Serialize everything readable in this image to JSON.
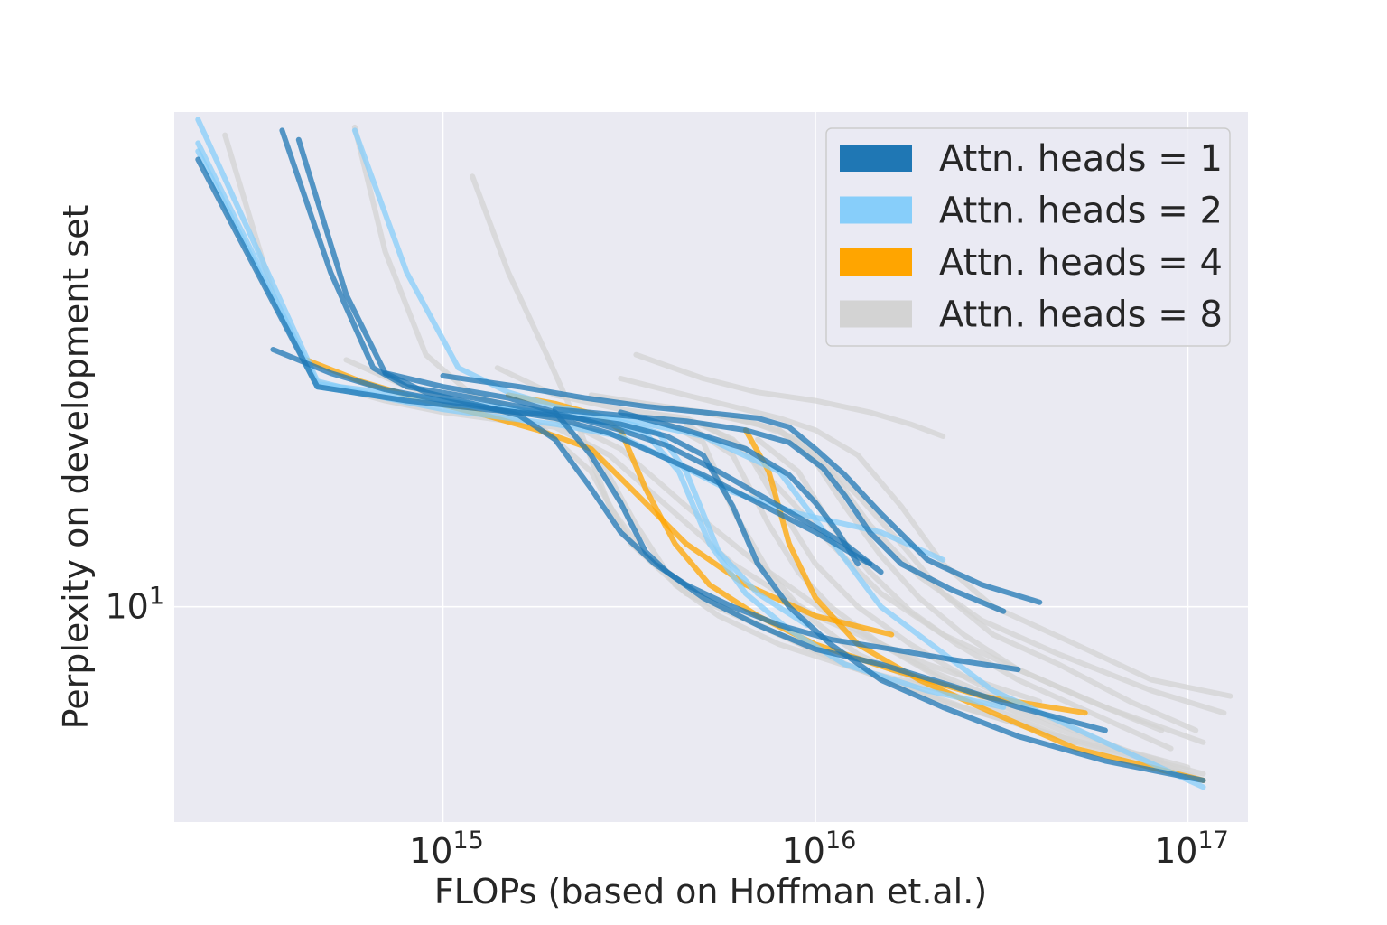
{
  "chart_data": {
    "type": "line",
    "title": "",
    "xlabel": "FLOPs (based on Hoffman et.al.)",
    "ylabel": "Perplexity on development set",
    "xscale": "log",
    "yscale": "log",
    "xlim": [
      190000000000000.0,
      1.45e+17
    ],
    "ylim": [
      6.2,
      30.0
    ],
    "grid": true,
    "legend_position": "upper right",
    "x_ticks": [
      {
        "value": 1000000000000000.0,
        "base": "10",
        "exp": "15"
      },
      {
        "value": 1e+16,
        "base": "10",
        "exp": "16"
      },
      {
        "value": 1e+17,
        "base": "10",
        "exp": "17"
      }
    ],
    "y_ticks": [
      {
        "value": 10,
        "base": "10",
        "exp": "1"
      }
    ],
    "legend": [
      {
        "label": "Attn. heads = 1",
        "color": "#1f77b4"
      },
      {
        "label": "Attn. heads = 2",
        "color": "#87cefa"
      },
      {
        "label": "Attn. heads = 4",
        "color": "#ffa500"
      },
      {
        "label": "Attn. heads = 8",
        "color": "#d3d3d3"
      }
    ],
    "series": [
      {
        "group": 8,
        "x": [
          260000000000000.0,
          350000000000000.0,
          450000000000000.0,
          700000000000000.0,
          1000000000000000.0,
          1500000000000000.0,
          2000000000000000.0,
          2800000000000000.0,
          4000000000000000.0,
          6000000000000000.0,
          1e+16,
          2e+16,
          4e+16
        ],
        "y": [
          28.5,
          20.0,
          16.5,
          15.8,
          15.4,
          15.1,
          14.9,
          14.0,
          12.5,
          11.0,
          9.8,
          8.8,
          8.1
        ]
      },
      {
        "group": 8,
        "x": [
          580000000000000.0,
          700000000000000.0,
          900000000000000.0,
          1200000000000000.0,
          1600000000000000.0,
          2200000000000000.0,
          3000000000000000.0,
          4500000000000000.0,
          7000000000000000.0,
          1.1e+16,
          2e+16,
          4.5e+16,
          1.1e+17
        ],
        "y": [
          29.0,
          22.0,
          17.5,
          16.0,
          15.5,
          15.0,
          14.2,
          12.5,
          11.0,
          9.8,
          8.7,
          7.7,
          6.8
        ]
      },
      {
        "group": 8,
        "x": [
          1200000000000000.0,
          1500000000000000.0,
          1900000000000000.0,
          2300000000000000.0,
          2800000000000000.0,
          3500000000000000.0,
          5000000000000000.0,
          8000000000000000.0,
          1.3e+16,
          2.5e+16,
          5e+16,
          1.1e+17
        ],
        "y": [
          26.0,
          21.0,
          17.5,
          15.0,
          12.5,
          11.2,
          10.2,
          9.4,
          8.7,
          8.0,
          7.4,
          6.8
        ]
      },
      {
        "group": 8,
        "x": [
          550000000000000.0,
          800000000000000.0,
          1200000000000000.0,
          1800000000000000.0,
          2500000000000000.0,
          3200000000000000.0,
          4500000000000000.0,
          7000000000000000.0,
          1.2e+16,
          2.2e+16,
          4.5e+16,
          1.1e+17
        ],
        "y": [
          17.3,
          16.3,
          15.6,
          15.0,
          13.5,
          11.5,
          10.3,
          9.6,
          8.8,
          8.1,
          7.5,
          6.9
        ]
      },
      {
        "group": 8,
        "x": [
          1400000000000000.0,
          2000000000000000.0,
          3000000000000000.0,
          4500000000000000.0,
          6000000000000000.0,
          8000000000000000.0,
          1.1e+16,
          1.5e+16,
          2.2e+16,
          3.5e+16,
          6e+16,
          1.1e+17
        ],
        "y": [
          17.0,
          16.0,
          15.5,
          15.2,
          14.5,
          13.0,
          11.5,
          10.3,
          9.4,
          8.7,
          8.0,
          7.4
        ]
      },
      {
        "group": 8,
        "x": [
          2500000000000000.0,
          3500000000000000.0,
          5000000000000000.0,
          7000000000000000.0,
          9000000000000000.0,
          1.1e+16,
          1.4e+16,
          1.9e+16,
          2.8e+16,
          4.5e+16,
          8e+16,
          1.25e+17
        ],
        "y": [
          16.0,
          15.7,
          15.4,
          15.0,
          14.5,
          13.5,
          12.0,
          10.7,
          9.7,
          9.0,
          8.3,
          7.9
        ]
      },
      {
        "group": 8,
        "x": [
          3000000000000000.0,
          4500000000000000.0,
          6000000000000000.0,
          8000000000000000.0,
          1e+16,
          1.3e+16,
          1.7e+16,
          2.2e+16,
          3e+16,
          5e+16,
          8e+16,
          1.3e+17
        ],
        "y": [
          16.6,
          16.0,
          15.6,
          15.2,
          14.8,
          14.0,
          12.5,
          11.0,
          10.0,
          9.2,
          8.5,
          8.2
        ]
      },
      {
        "group": 8,
        "x": [
          3300000000000000.0,
          5000000000000000.0,
          7000000000000000.0,
          1e+16,
          1.4e+16,
          1.8e+16,
          2.2e+16
        ],
        "y": [
          17.5,
          16.6,
          16.1,
          15.8,
          15.4,
          15.0,
          14.6
        ]
      },
      {
        "group": 8,
        "x": [
          6000000000000000.0,
          8000000000000000.0,
          1e+16,
          1.3e+16,
          1.7e+16,
          2.2e+16,
          3e+16,
          4.5e+16,
          7e+16,
          1.05e+17
        ],
        "y": [
          15.2,
          14.8,
          14.0,
          12.8,
          11.5,
          10.3,
          9.4,
          8.8,
          8.1,
          7.6
        ]
      },
      {
        "group": 8,
        "x": [
          5000000000000000.0,
          6500000000000000.0,
          8000000000000000.0,
          1e+16,
          1.3e+16,
          1.8e+16,
          2.6e+16,
          4e+16,
          6.5e+16,
          1e+17
        ],
        "y": [
          15.0,
          14.2,
          12.5,
          11.0,
          10.0,
          9.2,
          8.5,
          7.9,
          7.3,
          7.0
        ]
      },
      {
        "group": 8,
        "x": [
          4500000000000000.0,
          6000000000000000.0,
          7500000000000000.0,
          9000000000000000.0,
          1.1e+16,
          1.5e+16,
          2.2e+16,
          3.5e+16,
          5.5e+16,
          8.5e+16
        ],
        "y": [
          15.0,
          14.0,
          12.0,
          10.8,
          10.0,
          9.2,
          8.5,
          7.9,
          7.4,
          7.1
        ]
      },
      {
        "group": 8,
        "x": [
          7000000000000000.0,
          9000000000000000.0,
          1.1e+16,
          1.4e+16,
          1.8e+16,
          2.4e+16,
          3.5e+16,
          5.5e+16,
          9e+16
        ],
        "y": [
          14.5,
          13.5,
          12.0,
          10.8,
          9.9,
          9.2,
          8.5,
          7.9,
          7.3
        ]
      },
      {
        "group": 8,
        "x": [
          3800000000000000.0,
          5000000000000000.0,
          6000000000000000.0,
          7500000000000000.0,
          9500000000000000.0,
          1.3e+16,
          2e+16,
          3.2e+16,
          5e+16
        ],
        "y": [
          15.2,
          14.4,
          12.4,
          10.8,
          9.8,
          9.0,
          8.4,
          7.9,
          7.4
        ]
      },
      {
        "group": 8,
        "x": [
          2000000000000000.0,
          2600000000000000.0,
          3300000000000000.0,
          4200000000000000.0,
          5500000000000000.0,
          8000000000000000.0,
          1.3e+16,
          2.2e+16
        ],
        "y": [
          15.2,
          14.0,
          12.0,
          10.5,
          9.8,
          9.2,
          8.7,
          8.3
        ]
      },
      {
        "group": 8,
        "x": [
          8000000000000000.0,
          1e+16,
          1.2e+16,
          1.5e+16,
          1.9e+16,
          2.5e+16,
          3.5e+16,
          5.5e+16,
          8.5e+16
        ],
        "y": [
          14.8,
          13.8,
          12.5,
          11.2,
          10.2,
          9.4,
          8.7,
          8.1,
          7.6
        ]
      },
      {
        "group": 4,
        "x": [
          430000000000000.0,
          600000000000000.0,
          900000000000000.0,
          1300000000000000.0,
          1800000000000000.0,
          2500000000000000.0,
          3200000000000000.0,
          4500000000000000.0,
          6500000000000000.0,
          1e+16,
          1.6e+16
        ],
        "y": [
          17.3,
          16.5,
          15.8,
          15.3,
          14.8,
          14.2,
          13.0,
          11.5,
          10.5,
          9.8,
          9.4
        ]
      },
      {
        "group": 4,
        "x": [
          1500000000000000.0,
          2000000000000000.0,
          2600000000000000.0,
          3000000000000000.0,
          3500000000000000.0,
          4200000000000000.0,
          5200000000000000.0,
          7000000000000000.0,
          1e+16,
          1.6e+16,
          2.8e+16,
          5.3e+16
        ],
        "y": [
          16.0,
          15.7,
          15.3,
          14.8,
          13.0,
          11.5,
          10.5,
          9.8,
          9.2,
          8.7,
          8.2,
          7.9
        ]
      },
      {
        "group": 4,
        "x": [
          6500000000000000.0,
          7500000000000000.0,
          8500000000000000.0,
          1e+16,
          1.3e+16,
          1.9e+16,
          3e+16,
          5e+16,
          1.1e+17
        ],
        "y": [
          14.8,
          13.5,
          11.5,
          10.2,
          9.2,
          8.5,
          7.9,
          7.3,
          6.8
        ]
      },
      {
        "group": 2,
        "x": [
          220000000000000.0,
          460000000000000.0,
          700000000000000.0,
          1000000000000000.0,
          1500000000000000.0,
          2000000000000000.0,
          3000000000000000.0,
          4500000000000000.0,
          6000000000000000.0,
          9000000000000000.0,
          1.5e+16,
          2.2e+16
        ],
        "y": [
          29.5,
          16.5,
          15.9,
          15.5,
          15.2,
          15.0,
          14.6,
          13.6,
          12.9,
          12.3,
          11.8,
          11.1
        ]
      },
      {
        "group": 2,
        "x": [
          220000000000000.0,
          460000000000000.0,
          800000000000000.0,
          1200000000000000.0,
          1800000000000000.0,
          2600000000000000.0,
          3500000000000000.0,
          4300000000000000.0,
          5200000000000000.0,
          6500000000000000.0,
          8500000000000000.0,
          1.2e+16,
          2e+16,
          3.2e+16
        ],
        "y": [
          28.0,
          16.4,
          16.0,
          15.7,
          15.4,
          15.1,
          14.7,
          13.5,
          11.5,
          10.3,
          9.5,
          8.8,
          8.3,
          8.0
        ]
      },
      {
        "group": 2,
        "x": [
          580000000000000.0,
          800000000000000.0,
          1100000000000000.0,
          1500000000000000.0,
          2000000000000000.0,
          2600000000000000.0,
          3200000000000000.0,
          3800000000000000.0,
          4500000000000000.0,
          5500000000000000.0,
          7000000000000000.0,
          9500000000000000.0
        ],
        "y": [
          28.8,
          21.0,
          17.0,
          16.1,
          15.6,
          15.3,
          15.0,
          14.7,
          13.5,
          11.3,
          10.3,
          9.6
        ]
      },
      {
        "group": 2,
        "x": [
          220000000000000.0,
          460000000000000.0,
          800000000000000.0,
          1500000000000000.0,
          3000000000000000.0,
          5000000000000000.0,
          8000000000000000.0,
          1.5e+16,
          3e+16,
          6e+16,
          1.1e+17
        ],
        "y": [
          27.5,
          16.3,
          15.8,
          15.5,
          15.2,
          14.6,
          13.5,
          10.0,
          8.3,
          7.4,
          6.7
        ]
      },
      {
        "group": 1,
        "x": [
          350000000000000.0,
          500000000000000.0,
          700000000000000.0,
          1000000000000000.0,
          1400000000000000.0,
          2000000000000000.0,
          2800000000000000.0,
          3800000000000000.0,
          5000000000000000.0,
          7000000000000000.0,
          1e+16,
          1.4e+16
        ],
        "y": [
          17.7,
          16.8,
          16.2,
          15.8,
          15.5,
          15.2,
          14.7,
          14.0,
          13.4,
          12.6,
          11.8,
          11.0
        ]
      },
      {
        "group": 1,
        "x": [
          370000000000000.0,
          500000000000000.0,
          650000000000000.0,
          800000000000000.0,
          1100000000000000.0,
          1600000000000000.0,
          2300000000000000.0,
          3000000000000000.0,
          4000000000000000.0,
          5500000000000000.0,
          8000000000000000.0,
          1.2e+16,
          1.5e+16
        ],
        "y": [
          28.8,
          21.0,
          17.0,
          16.3,
          16.0,
          15.6,
          15.2,
          14.8,
          14.3,
          13.5,
          12.5,
          11.5,
          10.8
        ]
      },
      {
        "group": 1,
        "x": [
          410000000000000.0,
          550000000000000.0,
          700000000000000.0,
          900000000000000.0,
          1200000000000000.0,
          1600000000000000.0,
          2000000000000000.0,
          2500000000000000.0,
          3000000000000000.0,
          3700000000000000.0,
          4500000000000000.0,
          6000000000000000.0,
          8000000000000000.0,
          1.1e+16,
          1.6e+16,
          2.3e+16,
          3.5e+16
        ],
        "y": [
          28.2,
          20.0,
          16.8,
          16.1,
          15.7,
          15.3,
          14.5,
          13.0,
          11.8,
          11.0,
          10.5,
          10.0,
          9.6,
          9.3,
          9.1,
          8.9,
          8.7
        ]
      },
      {
        "group": 1,
        "x": [
          700000000000000.0,
          1000000000000000.0,
          1500000000000000.0,
          2000000000000000.0,
          2500000000000000.0,
          3000000000000000.0,
          3500000000000000.0,
          4000000000000000.0,
          5000000000000000.0,
          7000000000000000.0,
          1e+16,
          1.5e+16,
          2.3e+16,
          3.5e+16,
          6e+16
        ],
        "y": [
          16.8,
          16.3,
          15.9,
          15.4,
          14.0,
          12.6,
          11.3,
          10.8,
          10.2,
          9.6,
          9.1,
          8.8,
          8.4,
          8.0,
          7.6
        ]
      },
      {
        "group": 1,
        "x": [
          1000000000000000.0,
          1600000000000000.0,
          2400000000000000.0,
          3500000000000000.0,
          5000000000000000.0,
          7000000000000000.0,
          8500000000000000.0,
          1e+16,
          1.2e+16,
          1.5e+16,
          2e+16,
          2.8e+16,
          4e+16
        ],
        "y": [
          16.7,
          16.3,
          15.9,
          15.6,
          15.4,
          15.2,
          14.9,
          14.2,
          13.4,
          12.3,
          11.1,
          10.5,
          10.1
        ]
      },
      {
        "group": 1,
        "x": [
          2000000000000000.0,
          3000000000000000.0,
          4500000000000000.0,
          6500000000000000.0,
          8500000000000000.0,
          1.05e+16,
          1.2e+16,
          1.4e+16,
          1.7e+16,
          2.3e+16,
          3.2e+16
        ],
        "y": [
          15.5,
          15.3,
          15.1,
          14.8,
          14.4,
          13.6,
          12.8,
          11.8,
          11.0,
          10.4,
          9.9
        ]
      },
      {
        "group": 1,
        "x": [
          220000000000000.0,
          460000000000000.0,
          800000000000000.0,
          1300000000000000.0,
          2000000000000000.0,
          3000000000000000.0,
          4000000000000000.0,
          5000000000000000.0,
          6000000000000000.0,
          7000000000000000.0,
          8500000000000000.0,
          1.1e+16,
          1.5e+16,
          2.2e+16,
          3.5e+16,
          6e+16,
          1.1e+17
        ],
        "y": [
          27.0,
          16.3,
          15.8,
          15.5,
          15.3,
          15.0,
          14.6,
          14.0,
          12.5,
          11.0,
          10.0,
          9.2,
          8.5,
          8.0,
          7.5,
          7.1,
          6.8
        ]
      },
      {
        "group": 1,
        "x": [
          3000000000000000.0,
          4500000000000000.0,
          6500000000000000.0,
          8500000000000000.0,
          1e+16,
          1.15e+16,
          1.3e+16
        ],
        "y": [
          15.4,
          14.8,
          14.2,
          13.4,
          12.6,
          11.8,
          11.0
        ]
      }
    ]
  }
}
